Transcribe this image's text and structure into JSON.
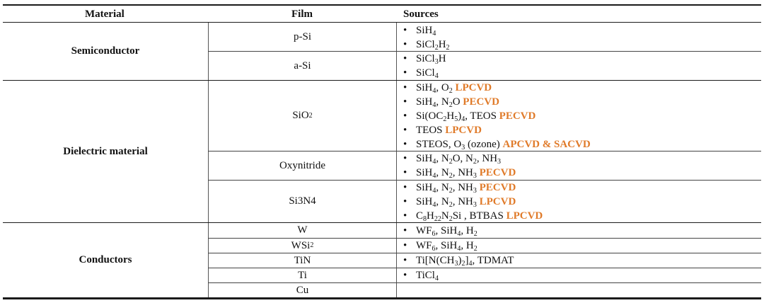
{
  "headers": {
    "material": "Material",
    "film": "Film",
    "sources": "Sources"
  },
  "rows": [
    {
      "material": "Semiconductor",
      "films": [
        {
          "name": "p-Si",
          "sources": [
            "SiH<sub>4</sub>",
            "SiCl<sub>2</sub>H<sub>2</sub>"
          ]
        },
        {
          "name": "a-Si",
          "sources": [
            "SiCl<sub>3</sub>H",
            "SiCl<sub>4</sub>"
          ]
        }
      ]
    },
    {
      "material": "Dielectric material",
      "films": [
        {
          "name": "SiO<sub>2</sub>",
          "sources": [
            "SiH<sub>4</sub>, O<sub>2</sub> <span class=\"hl\">LPCVD</span>",
            "SiH<sub>4</sub>, N<sub>2</sub>O <span class=\"hl\">PECVD</span>",
            "Si(OC<sub>2</sub>H<sub>5</sub>)<sub>4</sub>, TEOS <span class=\"hl\">PECVD</span>",
            "TEOS <span class=\"hl\">LPCVD</span>",
            "STEOS, O<sub>3</sub> (ozone) <span class=\"hl\">APCVD &amp; SACVD</span>"
          ]
        },
        {
          "name": "Oxynitride",
          "sources": [
            "SiH<sub>4</sub>, N<sub>2</sub>O, N<sub>2</sub>, NH<sub>3</sub>",
            "SiH<sub>4</sub>, N<sub>2</sub>, NH<sub>3</sub> <span class=\"hl\">PECVD</span>"
          ]
        },
        {
          "name": "Si3N4",
          "sources": [
            "SiH<sub>4</sub>, N<sub>2</sub>, NH<sub>3</sub> <span class=\"hl\">PECVD</span>",
            "SiH<sub>4</sub>, N<sub>2</sub>, NH<sub>3</sub> <span class=\"hl\">LPCVD</span>",
            "C<sub>8</sub>H<sub>22</sub>N<sub>2</sub>Si , BTBAS <span class=\"hl\">LPCVD</span>"
          ]
        }
      ]
    },
    {
      "material": "Conductors",
      "films": [
        {
          "name": "W",
          "sources": [
            "WF<sub>6</sub>, SiH<sub>4</sub>, H<sub>2</sub>"
          ]
        },
        {
          "name": "WSi<sub>2</sub>",
          "sources": [
            "WF<sub>6</sub>, SiH<sub>4</sub>, H<sub>2</sub>"
          ]
        },
        {
          "name": "TiN",
          "sources": [
            "Ti[N(CH<sub>3</sub>)<sub>2</sub>]<sub>4</sub>, TDMAT"
          ]
        },
        {
          "name": "Ti",
          "sources": [
            "TiCl<sub>4</sub>"
          ]
        },
        {
          "name": "Cu",
          "sources": []
        }
      ]
    }
  ]
}
